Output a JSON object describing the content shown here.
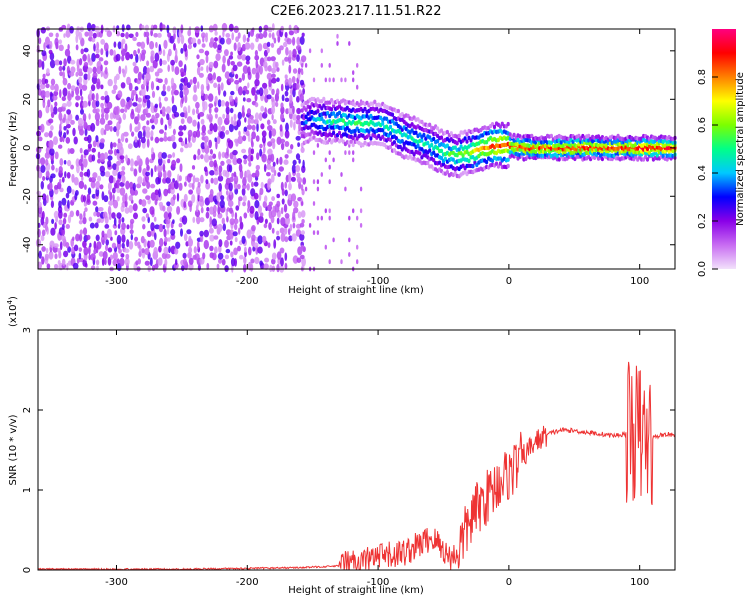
{
  "title": "C2E6.2023.217.11.51.R22",
  "chart_data": [
    {
      "type": "heatmap",
      "xlabel": "Height of straight line (km)",
      "ylabel": "Frequency (Hz)",
      "xlim": [
        -360,
        127
      ],
      "ylim": [
        -50,
        49
      ],
      "xticks": [
        -300,
        -200,
        -100,
        0,
        100
      ],
      "yticks": [
        -40,
        -20,
        0,
        20,
        40
      ],
      "colorbar": {
        "label": "Normalized spectral amplitude",
        "range": [
          0,
          1
        ],
        "ticks": [
          "0.0",
          "0.2",
          "0.4",
          "0.6",
          "0.8"
        ],
        "colors": [
          "#f2e1fb",
          "#c86cf2",
          "#8a00e8",
          "#0000ff",
          "#00c8ff",
          "#00ff88",
          "#7cff00",
          "#ffff00",
          "#ff8000",
          "#ff0000",
          "#ff0080"
        ]
      },
      "noise_region_x": [
        -360,
        -158
      ],
      "ridge": {
        "x": [
          -158,
          -150,
          -140,
          -130,
          -120,
          -110,
          -100,
          -90,
          -80,
          -70,
          -60,
          -50,
          -40,
          -30,
          -20,
          -10,
          0,
          10,
          20,
          40,
          60,
          80,
          100,
          127
        ],
        "y": [
          10,
          12,
          11,
          11,
          10,
          10,
          10,
          8,
          5,
          3,
          1,
          -2,
          -3,
          -2,
          0,
          1,
          1,
          0,
          0,
          0,
          0,
          0,
          0,
          0
        ],
        "amplitude": [
          0.3,
          0.35,
          0.45,
          0.5,
          0.5,
          0.5,
          0.45,
          0.45,
          0.45,
          0.45,
          0.45,
          0.5,
          0.55,
          0.6,
          0.75,
          0.85,
          0.85,
          0.85,
          0.85,
          0.85,
          0.85,
          0.85,
          0.9,
          0.9
        ]
      }
    },
    {
      "type": "line",
      "xlabel": "Height of straight line (km)",
      "ylabel": "SNR (10 * v/v)",
      "yscale_label": "(x10",
      "yscale_exp": "4",
      "yscale_close": ")",
      "xlim": [
        -360,
        127
      ],
      "ylim": [
        0,
        3
      ],
      "xticks": [
        -300,
        -200,
        -100,
        0,
        100
      ],
      "yticks": [
        0,
        1,
        2,
        3
      ],
      "color": "#ee3333",
      "series": [
        {
          "x": [
            -360,
            -300,
            -250,
            -200,
            -160,
            -130,
            -120,
            -110,
            -100,
            -90,
            -80,
            -70,
            -60,
            -55,
            -50,
            -45,
            -40,
            -35,
            -30,
            -25,
            -20,
            -15,
            -10,
            -5,
            0,
            5,
            10,
            15,
            20,
            30,
            40,
            50,
            60,
            70,
            80,
            90,
            95,
            100,
            105,
            110,
            115,
            120,
            127
          ],
          "y": [
            0.01,
            0.01,
            0.01,
            0.02,
            0.03,
            0.05,
            0.08,
            0.12,
            0.15,
            0.18,
            0.22,
            0.3,
            0.4,
            0.35,
            0.25,
            0.15,
            0.2,
            0.4,
            0.6,
            0.75,
            0.85,
            0.95,
            1.05,
            1.15,
            1.2,
            1.3,
            1.4,
            1.5,
            1.6,
            1.7,
            1.75,
            1.74,
            1.72,
            1.7,
            1.68,
            1.7,
            1.75,
            1.7,
            1.6,
            1.65,
            1.68,
            1.7,
            1.68
          ]
        }
      ]
    }
  ]
}
